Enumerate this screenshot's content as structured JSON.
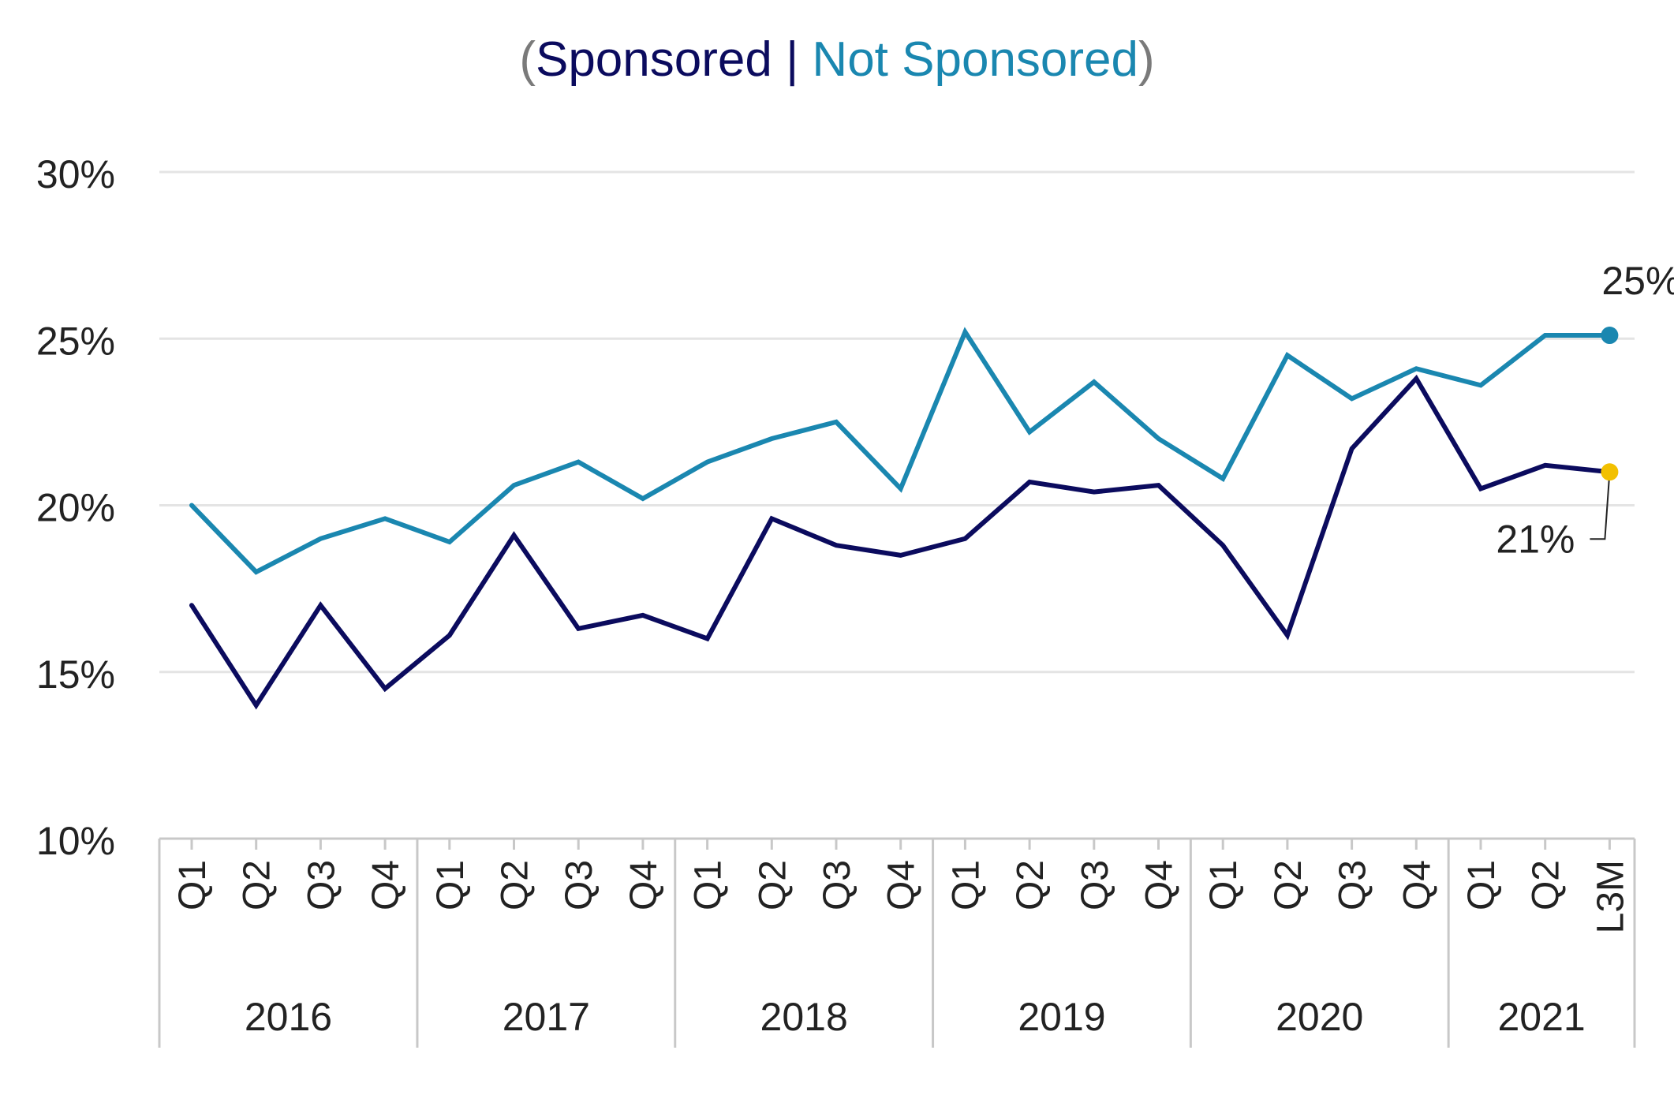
{
  "chart_data": {
    "type": "line",
    "title": {
      "open_paren": "(",
      "series_a": "Sponsored",
      "separator": " | ",
      "series_b": "Not Sponsored",
      "close_paren": ")"
    },
    "categories": [
      "Q1",
      "Q2",
      "Q3",
      "Q4",
      "Q1",
      "Q2",
      "Q3",
      "Q4",
      "Q1",
      "Q2",
      "Q3",
      "Q4",
      "Q1",
      "Q2",
      "Q3",
      "Q4",
      "Q1",
      "Q2",
      "Q3",
      "Q4",
      "Q1",
      "Q2",
      "L3M"
    ],
    "year_groups": [
      {
        "label": "2016",
        "count": 4
      },
      {
        "label": "2017",
        "count": 4
      },
      {
        "label": "2018",
        "count": 4
      },
      {
        "label": "2019",
        "count": 4
      },
      {
        "label": "2020",
        "count": 4
      },
      {
        "label": "2021",
        "count": 3
      }
    ],
    "ylim": [
      10,
      30
    ],
    "yticks": [
      10,
      15,
      20,
      25,
      30
    ],
    "ytick_labels": [
      "10%",
      "15%",
      "20%",
      "25%",
      "30%"
    ],
    "grid": true,
    "series": [
      {
        "name": "Sponsored",
        "color": "#0b0b5e",
        "values": [
          17.0,
          14.0,
          17.0,
          14.5,
          16.1,
          19.1,
          16.3,
          16.7,
          16.0,
          19.6,
          18.8,
          18.5,
          19.0,
          20.7,
          20.4,
          20.6,
          18.8,
          16.1,
          21.7,
          23.8,
          20.5,
          21.2,
          21.0
        ],
        "end_marker_color": "#f2c000",
        "end_label": "21%"
      },
      {
        "name": "Not Sponsored",
        "color": "#1a87b0",
        "values": [
          20.0,
          18.0,
          19.0,
          19.6,
          18.9,
          20.6,
          21.3,
          20.2,
          21.3,
          22.0,
          22.5,
          20.5,
          25.2,
          22.2,
          23.7,
          22.0,
          20.8,
          24.5,
          23.2,
          24.1,
          23.6,
          25.1,
          25.1
        ],
        "end_marker_color": "#1a87b0",
        "end_label": "25%"
      }
    ]
  },
  "colors": {
    "title_paren": "#7a7a7a",
    "grid": "#e4e4e4",
    "axis": "#c8c8c8",
    "text": "#222222"
  }
}
